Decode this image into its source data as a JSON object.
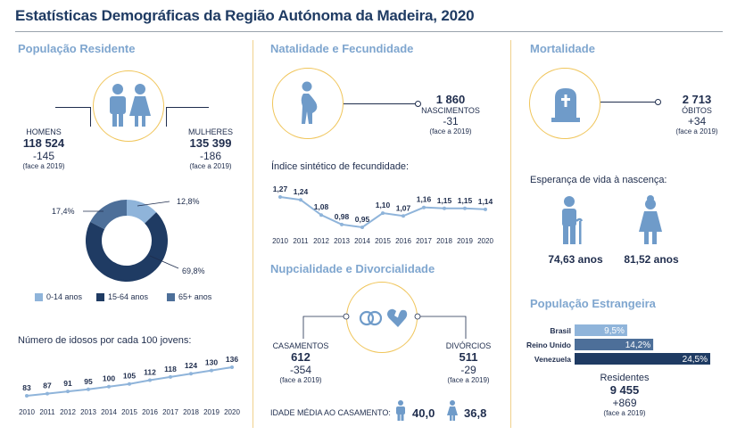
{
  "title": "Estatísticas Demográficas da Região Autónoma da Madeira, 2020",
  "populacao": {
    "heading": "População Residente",
    "homens_label": "HOMENS",
    "homens_value": "118 524",
    "homens_delta": "-145",
    "homens_face": "(face a 2019)",
    "mulheres_label": "MULHERES",
    "mulheres_value": "135 399",
    "mulheres_delta": "-186",
    "mulheres_face": "(face a 2019)"
  },
  "chart_data": [
    {
      "type": "pie",
      "categories": [
        "0-14 anos",
        "15-64 anos",
        "65+ anos"
      ],
      "values": [
        12.8,
        69.8,
        17.4
      ],
      "labels": [
        "12,8%",
        "69,8%",
        "17,4%"
      ],
      "colors": [
        "#8fb4da",
        "#1f3b63",
        "#4d6f99"
      ],
      "legend": "bottom"
    },
    {
      "type": "line",
      "title": "Número de idosos por cada 100 jovens:",
      "x": [
        "2010",
        "2011",
        "2012",
        "2013",
        "2014",
        "2015",
        "2016",
        "2017",
        "2018",
        "2019",
        "2020"
      ],
      "values": [
        83,
        87,
        91,
        95,
        100,
        105,
        112,
        118,
        124,
        130,
        136
      ],
      "labels": [
        "83",
        "87",
        "91",
        "95",
        "100",
        "105",
        "112",
        "118",
        "124",
        "130",
        "136"
      ]
    },
    {
      "type": "line",
      "title": "Índice sintético de fecundidade:",
      "x": [
        "2010",
        "2011",
        "2012",
        "2013",
        "2014",
        "2015",
        "2016",
        "2017",
        "2018",
        "2019",
        "2020"
      ],
      "values": [
        1.27,
        1.24,
        1.08,
        0.98,
        0.95,
        1.1,
        1.07,
        1.16,
        1.15,
        1.15,
        1.14
      ],
      "labels": [
        "1,27",
        "1,24",
        "1,08",
        "0,98",
        "0,95",
        "1,10",
        "1,07",
        "1,16",
        "1,15",
        "1,15",
        "1,14"
      ]
    },
    {
      "type": "bar",
      "title": "População Estrangeira",
      "categories": [
        "Brasil",
        "Reino Unido",
        "Venezuela"
      ],
      "values": [
        9.5,
        14.2,
        24.5
      ],
      "labels": [
        "9,5%",
        "14,2%",
        "24,5%"
      ],
      "colors": [
        "#8fb4da",
        "#4d6f99",
        "#1f3b63"
      ]
    }
  ],
  "natalidade": {
    "heading": "Natalidade e Fecundidade",
    "value": "1 860",
    "label": "NASCIMENTOS",
    "delta": "-31",
    "face": "(face a 2019)",
    "isf_title": "Índice sintético de fecundidade:"
  },
  "nupcialidade": {
    "heading": "Nupcialidade e Divorcialidade",
    "casamentos_label": "CASAMENTOS",
    "casamentos_value": "612",
    "casamentos_delta": "-354",
    "casamentos_face": "(face a 2019)",
    "divorcios_label": "DIVÓRCIOS",
    "divorcios_value": "511",
    "divorcios_delta": "-29",
    "divorcios_face": "(face a 2019)",
    "idade_label": "IDADE MÉDIA AO CASAMENTO:",
    "idade_h": "40,0",
    "idade_m": "36,8"
  },
  "mortalidade": {
    "heading": "Mortalidade",
    "value": "2 713",
    "label": "ÓBITOS",
    "delta": "+34",
    "face": "(face a 2019)",
    "esperanca_title": "Esperança de vida à nascença:",
    "esp_h": "74,63 anos",
    "esp_m": "81,52 anos"
  },
  "estrangeira": {
    "heading": "População Estrangeira",
    "residentes_label": "Residentes",
    "residentes_value": "9 455",
    "residentes_delta": "+869",
    "residentes_face": "(face a 2019)"
  },
  "idosos_title": "Número de idosos por cada 100 jovens:"
}
